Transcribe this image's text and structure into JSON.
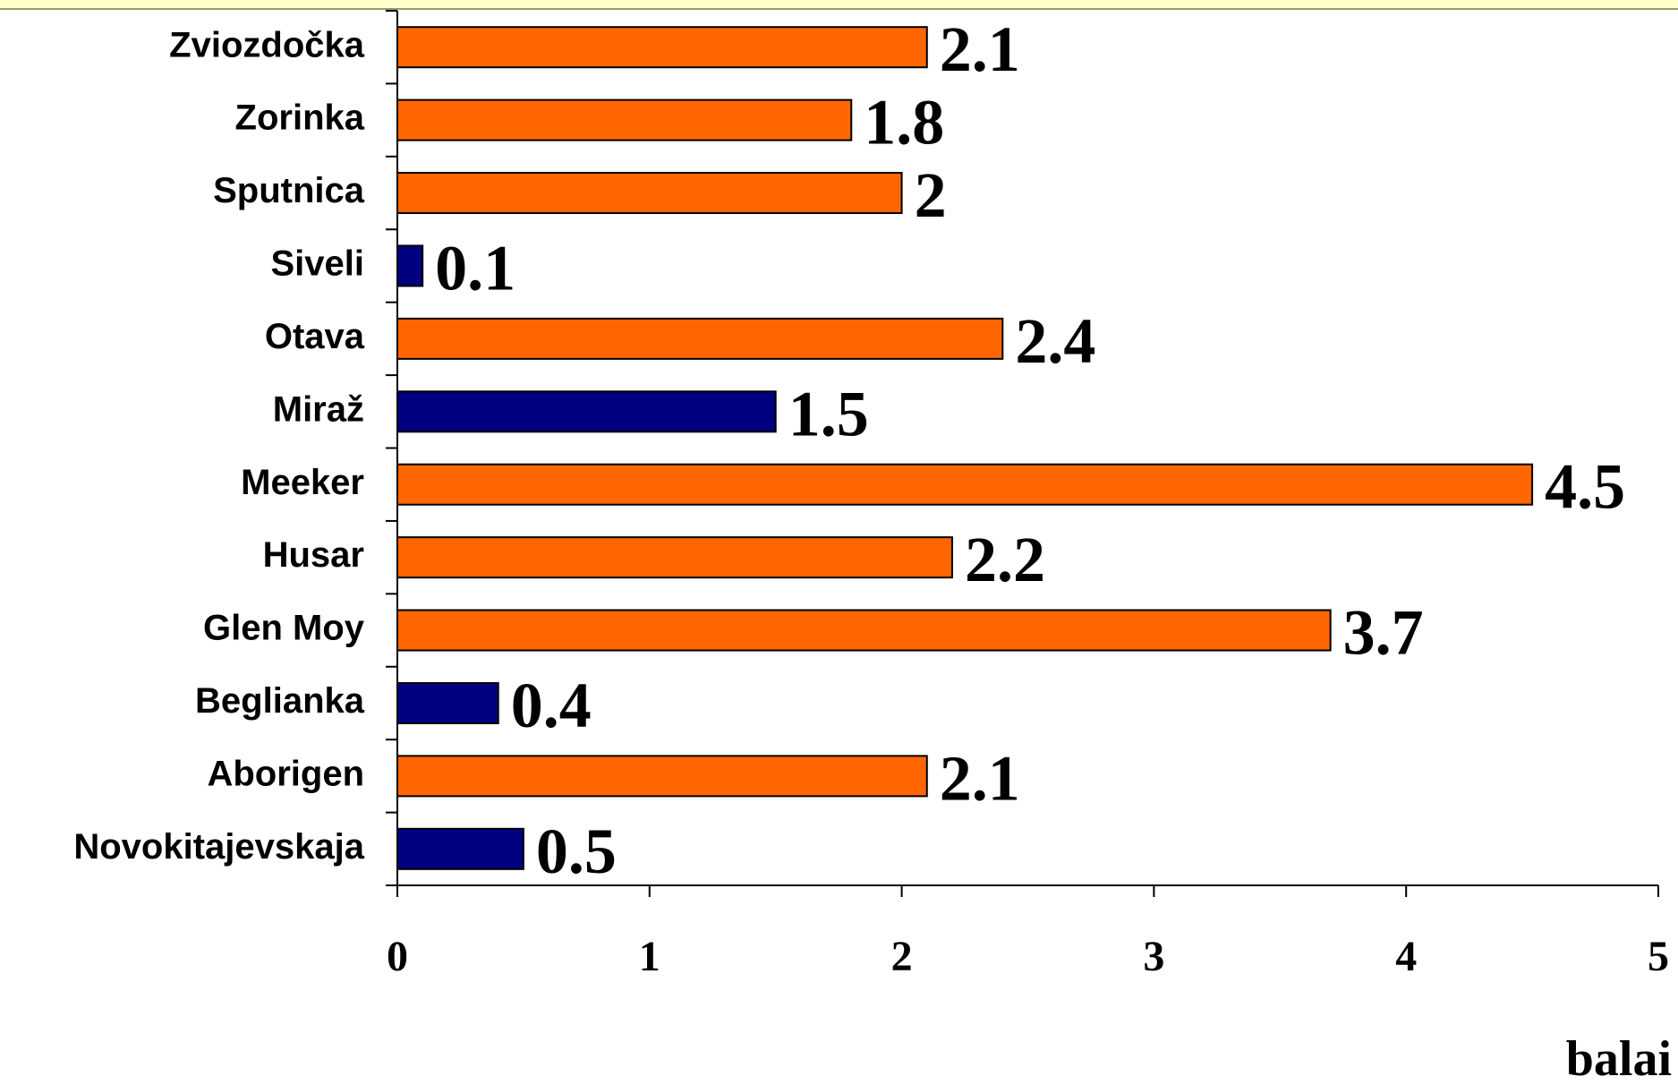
{
  "chart_data": {
    "type": "hbar",
    "categories": [
      "Zviozdočka",
      "Zorinka",
      "Sputnica",
      "Siveli",
      "Otava",
      "Miraž",
      "Meeker",
      "Husar",
      "Glen Moy",
      "Beglianka",
      "Aborigen",
      "Novokitajevskaja"
    ],
    "values": [
      2.1,
      1.8,
      2,
      0.1,
      2.4,
      1.5,
      4.5,
      2.2,
      3.7,
      0.4,
      2.1,
      0.5
    ],
    "colors": [
      "#ff6600",
      "#ff6600",
      "#ff6600",
      "#000080",
      "#ff6600",
      "#000080",
      "#ff6600",
      "#ff6600",
      "#ff6600",
      "#000080",
      "#ff6600",
      "#000080"
    ],
    "xlim": [
      0,
      5
    ],
    "xticks": [
      0,
      1,
      2,
      3,
      4,
      5
    ],
    "x_label": "balai"
  }
}
